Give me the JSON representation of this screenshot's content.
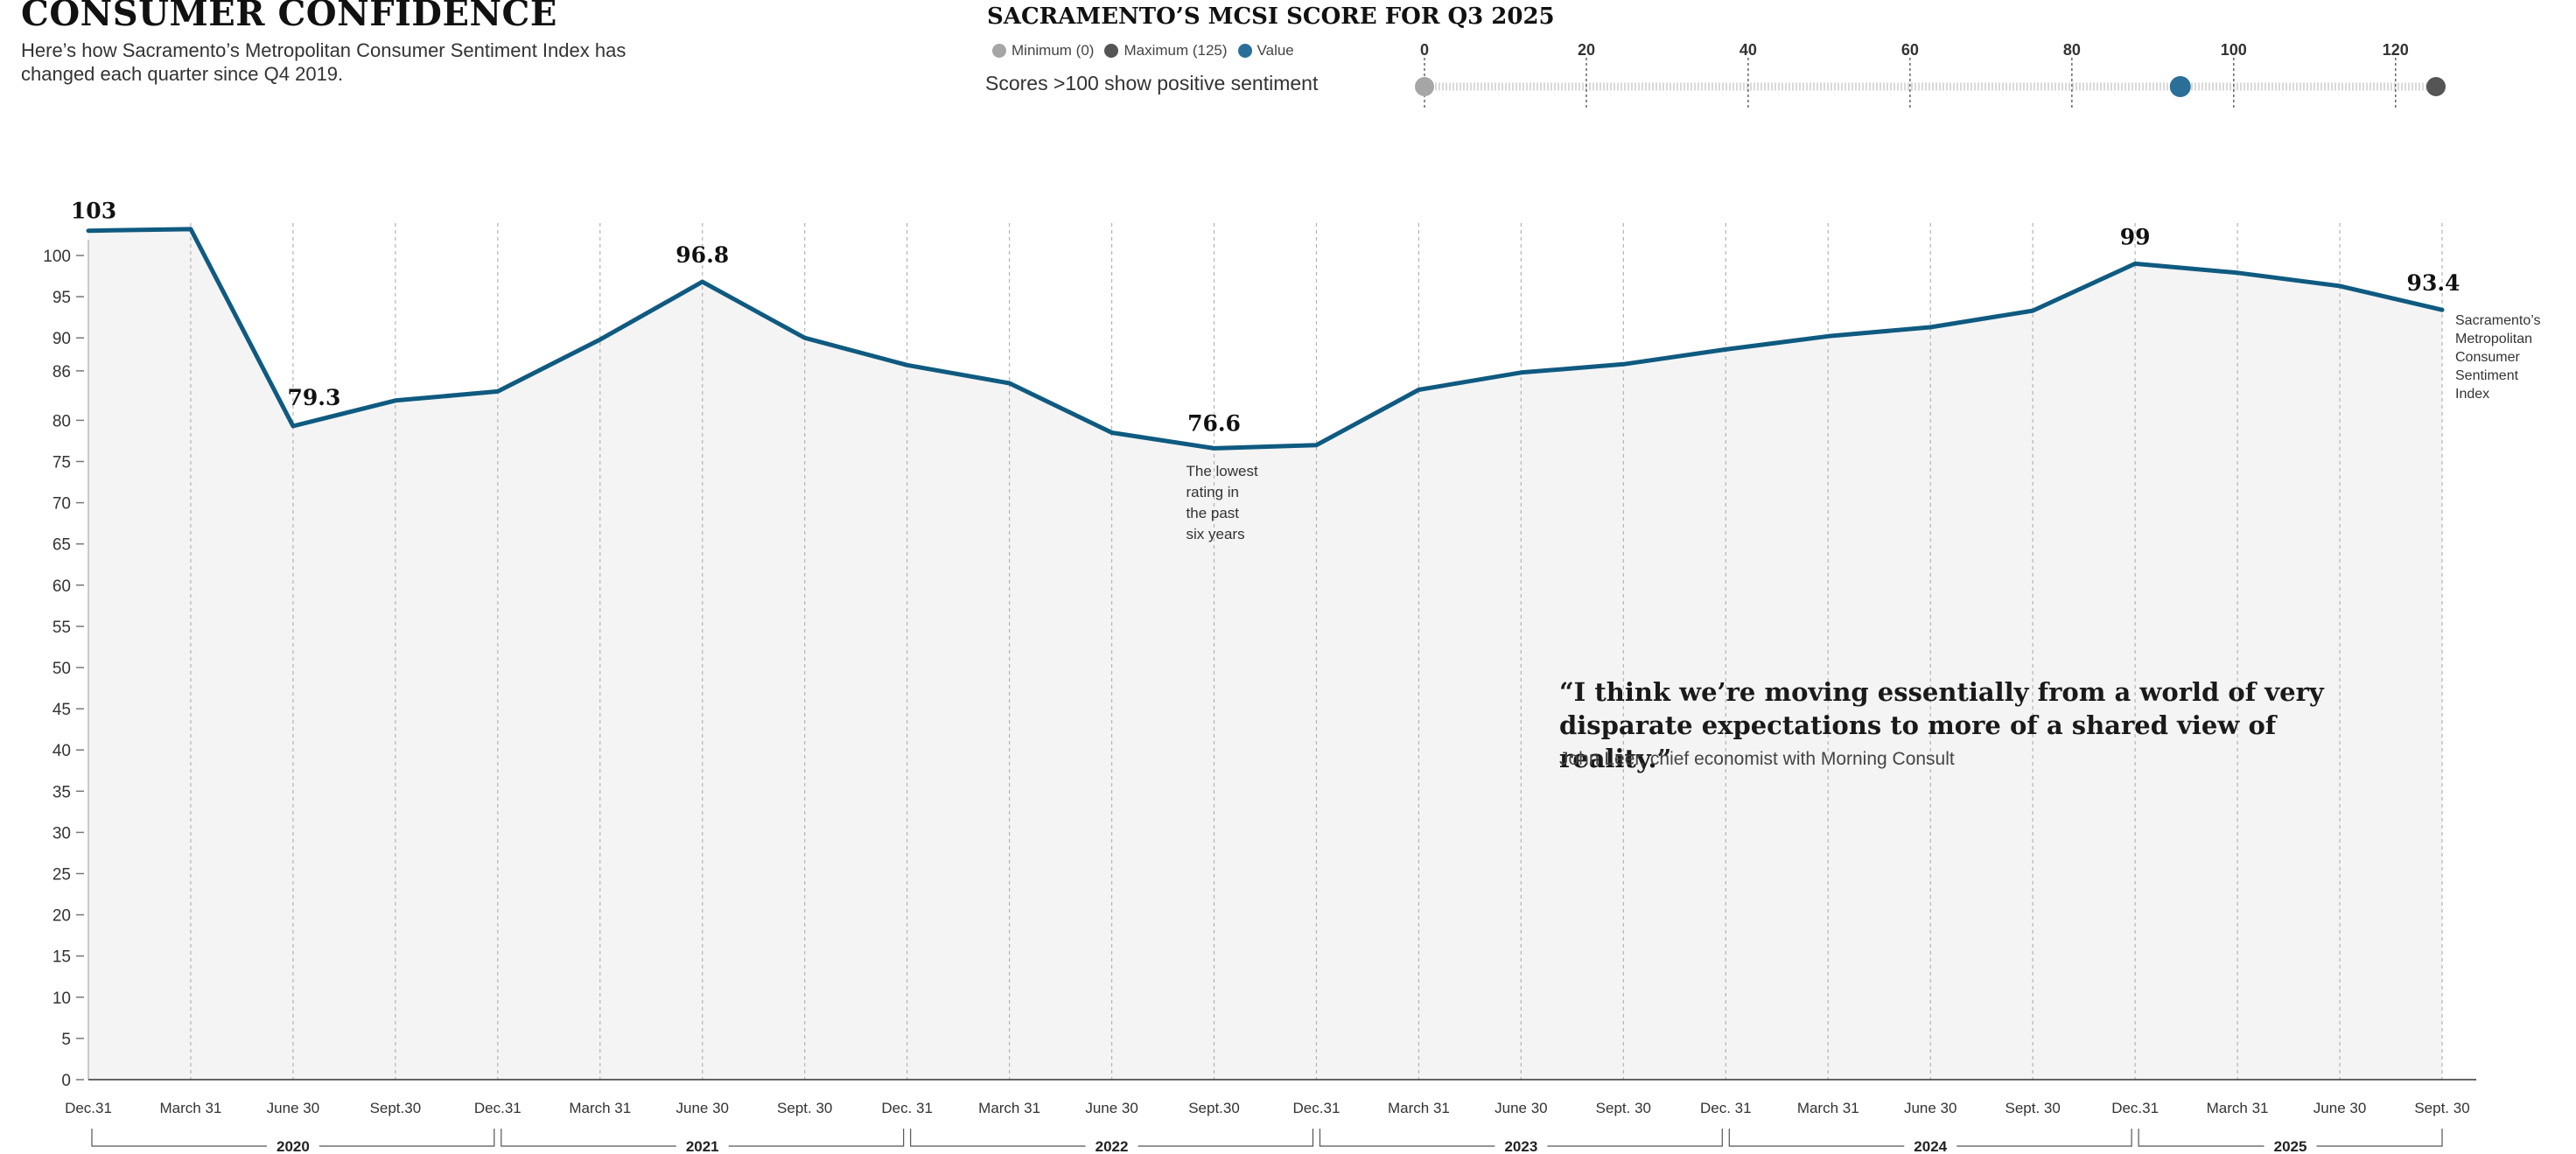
{
  "header": {
    "title": "CONSUMER CONFIDENCE",
    "subtitle": "Here’s how Sacramento’s Metropolitan Consumer Sentiment Index has changed each quarter since Q4 2019."
  },
  "score_panel": {
    "title": "SACRAMENTO’S MCSI SCORE FOR Q3 2025",
    "legend": [
      {
        "label": "Minimum (0)",
        "color": "#a6a6a6"
      },
      {
        "label": "Maximum (125)",
        "color": "#555555"
      },
      {
        "label": "Value",
        "color": "#2a6f97"
      }
    ],
    "note": "Scores >100 show positive sentiment",
    "scale_ticks": [
      "0",
      "20",
      "40",
      "60",
      "80",
      "100",
      "120"
    ],
    "min": 0,
    "max": 125,
    "value": 93.4
  },
  "quote": {
    "text": "“I think we’re moving essentially from a world of very disparate expectations to more of a shared view of reality.”",
    "attribution": "John Leer, chief economist with Morning Consult"
  },
  "chart_data": {
    "type": "area",
    "x": [
      "Dec.31",
      "March 31",
      "June 30",
      "Sept.30",
      "Dec.31",
      "March 31",
      "June 30",
      "Sept. 30",
      "Dec. 31",
      "March 31",
      "June 30",
      "Sept.30",
      "Dec.31",
      "March 31",
      "June 30",
      "Sept. 30",
      "Dec. 31",
      "March 31",
      "June 30",
      "Sept. 30",
      "Dec.31",
      "March 31",
      "June 30",
      "Sept. 30"
    ],
    "series": [
      {
        "name": "Sacramento’s Metropolitan Consumer Sentiment Index",
        "values": [
          103,
          103.2,
          79.3,
          82.4,
          83.5,
          89.8,
          96.8,
          90,
          86.7,
          84.5,
          78.5,
          76.6,
          77,
          83.7,
          85.8,
          86.8,
          88.6,
          90.2,
          91.3,
          93.3,
          99,
          97.9,
          96.3,
          93.4
        ]
      }
    ],
    "year_groups": [
      "2020",
      "2021",
      "2022",
      "2023",
      "2024",
      "2025"
    ],
    "y_ticks": [
      0,
      5,
      10,
      15,
      20,
      25,
      30,
      35,
      40,
      45,
      50,
      55,
      60,
      65,
      70,
      75,
      80,
      86,
      90,
      95,
      100
    ],
    "ylim": [
      0,
      100
    ],
    "labeled_points": [
      {
        "index": 0,
        "label": "103"
      },
      {
        "index": 2,
        "label": "79.3"
      },
      {
        "index": 6,
        "label": "96.8"
      },
      {
        "index": 11,
        "label": "76.6"
      },
      {
        "index": 20,
        "label": "99"
      },
      {
        "index": 23,
        "label": "93.4"
      }
    ],
    "annotation": "The lowest rating in the past six years",
    "series_label_lines": [
      "Sacramento’s",
      "Metropolitan",
      "Consumer",
      "Sentiment",
      "Index"
    ],
    "line_color": "#0f5a80",
    "fill_color": "#f4f4f4",
    "grid": "vertical dashed"
  }
}
